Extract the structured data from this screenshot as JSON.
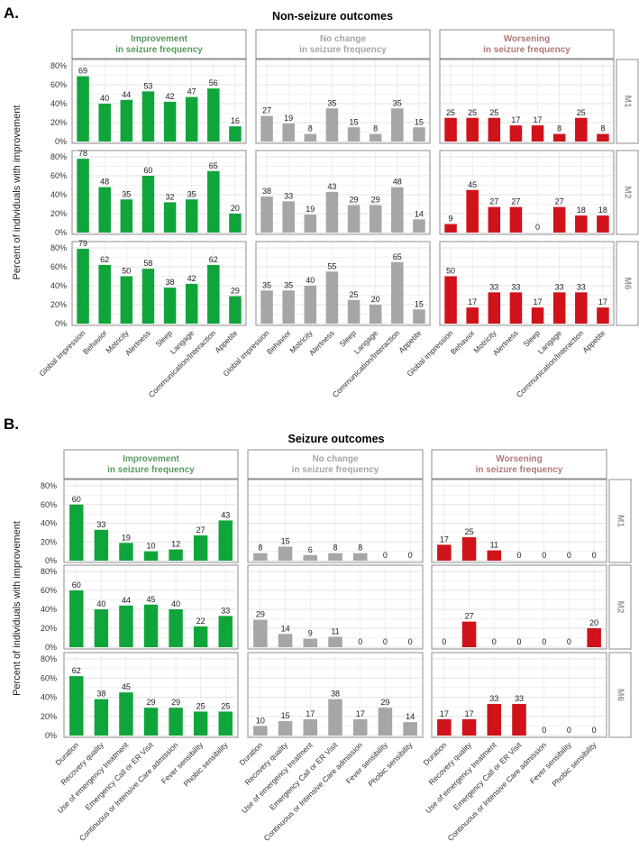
{
  "colors": {
    "improvement": "#10a53a",
    "no_change": "#a6a6a6",
    "worsening": "#d0121a",
    "improvement_text": "#5a9a5e",
    "no_change_text": "#a6a6a6",
    "worsening_text": "#b07a7a",
    "grid": "#e3e3e3",
    "strip_fill": "#ffffff",
    "strip_border": "#8c8c8c"
  },
  "chart_data": [
    {
      "type": "bar",
      "panel_letter": "A.",
      "title": "Non-seizure outcomes",
      "ylabel": "Percent of individuals with improvement",
      "ylim": [
        0,
        80
      ],
      "yticks": [
        "0%",
        "20%",
        "40%",
        "60%",
        "80%"
      ],
      "columns": [
        {
          "label_line1": "Improvement",
          "label_line2": "in seizure frequency",
          "color_key": "improvement"
        },
        {
          "label_line1": "No change",
          "label_line2": "in seizure frequency",
          "color_key": "no_change"
        },
        {
          "label_line1": "Worsening",
          "label_line2": "in seizure frequency",
          "color_key": "worsening"
        }
      ],
      "rows": [
        "M1",
        "M2",
        "M6"
      ],
      "categories": [
        "Global impression",
        "Behavior",
        "Motricity",
        "Alertness",
        "Sleep",
        "Langage",
        "Communication/Interaction",
        "Appetite"
      ],
      "values": [
        [
          [
            69,
            40,
            44,
            53,
            42,
            47,
            56,
            16
          ],
          [
            27,
            19,
            8,
            35,
            15,
            8,
            35,
            15
          ],
          [
            25,
            25,
            25,
            17,
            17,
            8,
            25,
            8
          ]
        ],
        [
          [
            78,
            48,
            35,
            60,
            32,
            35,
            65,
            20
          ],
          [
            38,
            33,
            19,
            43,
            29,
            29,
            48,
            14
          ],
          [
            9,
            45,
            27,
            27,
            0,
            27,
            18,
            18
          ]
        ],
        [
          [
            79,
            62,
            50,
            58,
            38,
            42,
            62,
            29
          ],
          [
            35,
            35,
            40,
            55,
            25,
            20,
            65,
            15
          ],
          [
            50,
            17,
            33,
            33,
            17,
            33,
            33,
            17
          ]
        ]
      ]
    },
    {
      "type": "bar",
      "panel_letter": "B.",
      "title": "Seizure outcomes",
      "ylabel": "Percent of individuals with improvement",
      "ylim": [
        0,
        80
      ],
      "yticks": [
        "0%",
        "20%",
        "40%",
        "60%",
        "80%"
      ],
      "columns": [
        {
          "label_line1": "Improvement",
          "label_line2": "in seizure frequency",
          "color_key": "improvement"
        },
        {
          "label_line1": "No change",
          "label_line2": "in seizure frequency",
          "color_key": "no_change"
        },
        {
          "label_line1": "Worsening",
          "label_line2": "in seizure frequency",
          "color_key": "worsening"
        }
      ],
      "rows": [
        "M1",
        "M2",
        "M6"
      ],
      "categories": [
        "Duration",
        "Recovery quality",
        "Use of emergency treatment",
        "Emergency Call or ER Visit",
        "Continuous or Intensive Care admission",
        "Fever sensibility",
        "Phobic sensibility"
      ],
      "values": [
        [
          [
            60,
            33,
            19,
            10,
            12,
            27,
            43
          ],
          [
            8,
            15,
            6,
            8,
            8,
            0,
            0
          ],
          [
            17,
            25,
            11,
            0,
            0,
            0,
            0
          ]
        ],
        [
          [
            60,
            40,
            44,
            45,
            40,
            22,
            33
          ],
          [
            29,
            14,
            9,
            11,
            0,
            0,
            0
          ],
          [
            0,
            27,
            0,
            0,
            0,
            0,
            20
          ]
        ],
        [
          [
            62,
            38,
            45,
            29,
            29,
            25,
            25
          ],
          [
            10,
            15,
            17,
            38,
            17,
            29,
            14
          ],
          [
            17,
            17,
            33,
            33,
            0,
            0,
            0
          ]
        ]
      ]
    }
  ]
}
